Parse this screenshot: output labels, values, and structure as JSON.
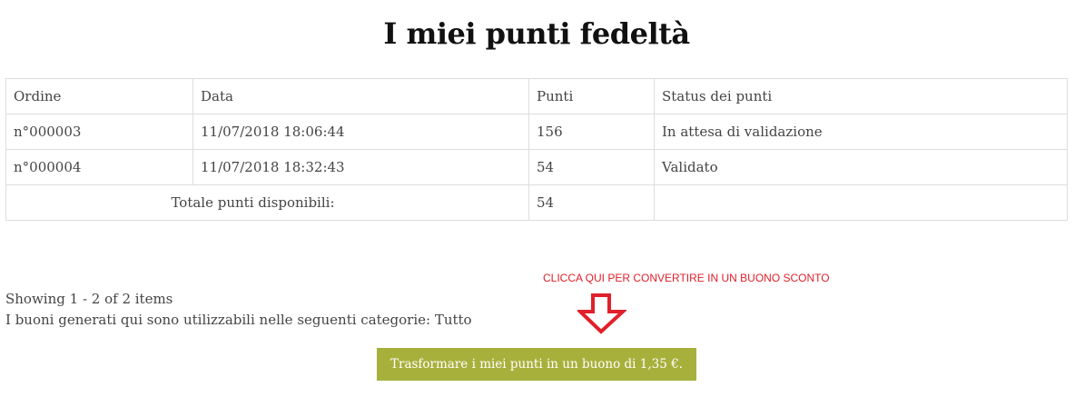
{
  "title": "I miei punti fedeltà",
  "table": {
    "headers": [
      "Ordine",
      "Data",
      "Punti",
      "Status dei punti"
    ],
    "rows": [
      [
        "n°000003",
        "11/07/2018 18:06:44",
        "156",
        "In attesa di validazione"
      ],
      [
        "n°000004",
        "11/07/2018 18:32:43",
        "54",
        "Validato"
      ]
    ],
    "total_label": "Totale punti disponibili:",
    "total_value": "54"
  },
  "pagination": "Showing 1 - 2 of 2 items",
  "categories_note": "I buoni generati qui sono utilizzabili nelle seguenti categorie: Tutto",
  "callout": "CLICCA QUI PER CONVERTIRE IN UN BUONO SCONTO",
  "convert_button": "Trasformare i miei punti in un buono di 1,35 €.",
  "colors": {
    "button": "#a8b03c",
    "callout": "#e0202a"
  }
}
